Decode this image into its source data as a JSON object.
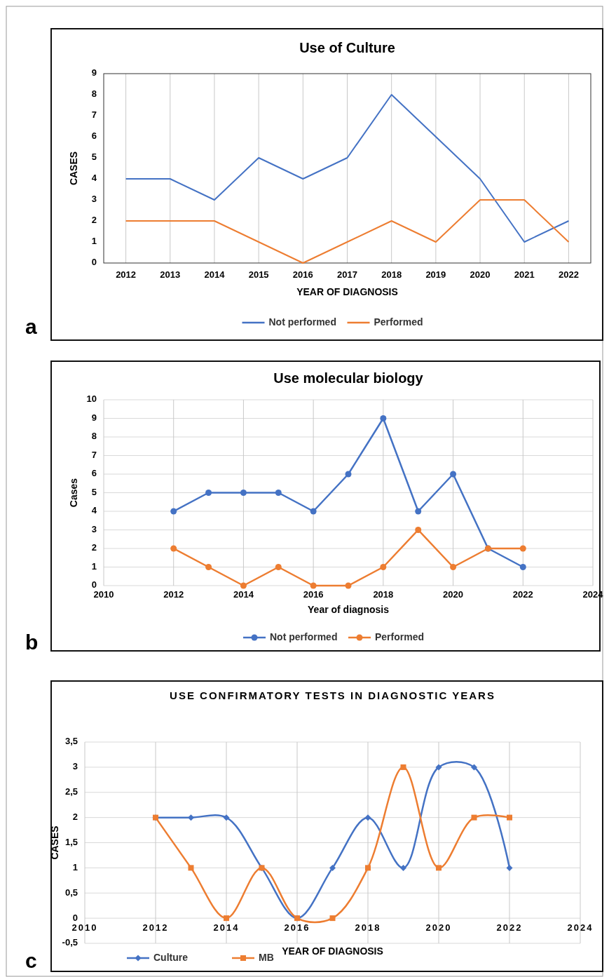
{
  "chart_data": [
    {
      "type": "line",
      "title": "Use of Culture",
      "xlabel": "YEAR OF DIAGNOSIS",
      "ylabel": "CASES",
      "categories": [
        "2012",
        "2013",
        "2014",
        "2015",
        "2016",
        "2017",
        "2018",
        "2019",
        "2020",
        "2021",
        "2022"
      ],
      "ylim": [
        0,
        9
      ],
      "yticks": [
        0,
        1,
        2,
        3,
        4,
        5,
        6,
        7,
        8,
        9
      ],
      "grid": "x",
      "legend": "bottom",
      "annotations": [
        "a"
      ],
      "series": [
        {
          "name": "Not performed",
          "color": "#4472c4",
          "values": [
            4,
            4,
            3,
            5,
            4,
            5,
            8,
            6,
            4,
            1,
            2
          ]
        },
        {
          "name": "Performed",
          "color": "#ed7d31",
          "values": [
            2,
            2,
            2,
            1,
            0,
            1,
            2,
            1,
            3,
            3,
            1
          ]
        }
      ]
    },
    {
      "type": "line",
      "title": "Use molecular biology",
      "xlabel": "Year of diagnosis",
      "ylabel": "Cases",
      "x": [
        2012,
        2013,
        2014,
        2015,
        2016,
        2017,
        2018,
        2019,
        2020,
        2021,
        2022
      ],
      "xlim": [
        2010,
        2024
      ],
      "xticks": [
        2010,
        2012,
        2014,
        2016,
        2018,
        2020,
        2022,
        2024
      ],
      "ylim": [
        0,
        10
      ],
      "yticks": [
        0,
        1,
        2,
        3,
        4,
        5,
        6,
        7,
        8,
        9,
        10
      ],
      "grid": true,
      "legend": "bottom",
      "marker": "circle",
      "annotations": [
        "b"
      ],
      "series": [
        {
          "name": "Not performed",
          "color": "#4472c4",
          "values": [
            4,
            5,
            5,
            5,
            4,
            6,
            9,
            4,
            6,
            2,
            1
          ]
        },
        {
          "name": "Performed",
          "color": "#ed7d31",
          "values": [
            2,
            1,
            0,
            1,
            0,
            0,
            1,
            3,
            1,
            2,
            2
          ]
        }
      ]
    },
    {
      "type": "line",
      "title": "USE CONFIRMATORY TESTS IN DIAGNOSTIC YEARS",
      "xlabel": "YEAR OF DIAGNOSIS",
      "ylabel": "CASES",
      "x": [
        2012,
        2013,
        2014,
        2015,
        2016,
        2017,
        2018,
        2019,
        2020,
        2021,
        2022
      ],
      "xlim": [
        2010,
        2024
      ],
      "xticks": [
        2010,
        2012,
        2014,
        2016,
        2018,
        2020,
        2022,
        2024
      ],
      "ylim": [
        -0.5,
        3.5
      ],
      "yticks": [
        {
          "value": -0.5,
          "label": "-0,5"
        },
        0,
        {
          "value": 0.5,
          "label": "0,5"
        },
        1,
        {
          "value": 1.5,
          "label": "1,5"
        },
        2,
        {
          "value": 2.5,
          "label": "2,5"
        },
        3,
        {
          "value": 3.5,
          "label": "3,5"
        }
      ],
      "grid": true,
      "legend": "bottom left",
      "annotations": [
        "c"
      ],
      "series": [
        {
          "name": "Culture",
          "color": "#4472c4",
          "marker": "diamond",
          "values": [
            2,
            2,
            2,
            1,
            0,
            1,
            2,
            1,
            3,
            3,
            1
          ]
        },
        {
          "name": "MB",
          "color": "#ed7d31",
          "marker": "square",
          "values": [
            2,
            1,
            0,
            1,
            0,
            0,
            1,
            3,
            1,
            2,
            2
          ]
        }
      ]
    }
  ]
}
